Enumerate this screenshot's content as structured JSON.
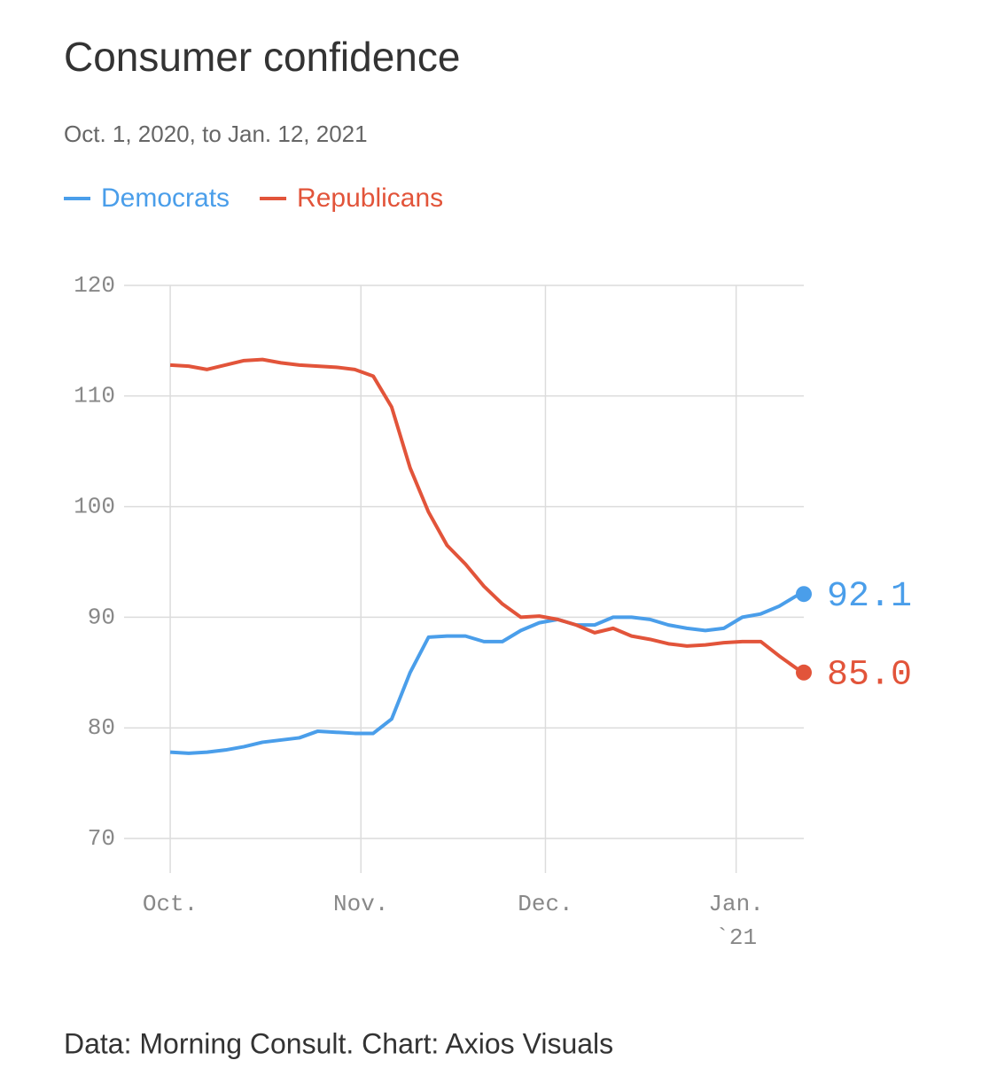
{
  "chart_data": {
    "type": "line",
    "title": "Consumer confidence",
    "subtitle": "Oct. 1, 2020, to Jan. 12, 2021",
    "source": "Data: Morning Consult. Chart: Axios Visuals",
    "x": [
      0,
      3,
      6,
      9,
      12,
      15,
      18,
      21,
      24,
      27,
      30,
      33,
      36,
      39,
      42,
      45,
      48,
      51,
      54,
      57,
      60,
      63,
      66,
      69,
      72,
      75,
      78,
      81,
      84,
      87,
      90,
      93,
      96,
      99,
      102,
      103
    ],
    "xlim": [
      -7.5,
      103
    ],
    "xticks": [
      {
        "value": 0,
        "label": "Oct."
      },
      {
        "value": 31,
        "label": "Nov."
      },
      {
        "value": 61,
        "label": "Dec."
      },
      {
        "value": 92,
        "label": "Jan."
      }
    ],
    "year_label": "`21",
    "ylim": [
      70,
      120
    ],
    "yticks": [
      70,
      80,
      90,
      100,
      110,
      120
    ],
    "grid": true,
    "series": [
      {
        "name": "Democrats",
        "color": "#4a9eea",
        "values": [
          77.8,
          77.7,
          77.8,
          78.0,
          78.3,
          78.7,
          78.9,
          79.1,
          79.7,
          79.6,
          79.5,
          79.5,
          80.8,
          85.0,
          88.2,
          88.3,
          88.3,
          87.8,
          87.8,
          88.8,
          89.5,
          89.8,
          89.3,
          89.3,
          90.0,
          90.0,
          89.8,
          89.3,
          89.0,
          88.8,
          89.0,
          90.0,
          90.3,
          91.0,
          92.0,
          92.1
        ],
        "last_value_label": "92.1"
      },
      {
        "name": "Republicans",
        "color": "#e2543a",
        "values": [
          112.8,
          112.7,
          112.4,
          112.8,
          113.2,
          113.3,
          113.0,
          112.8,
          112.7,
          112.6,
          112.4,
          111.8,
          109.0,
          103.5,
          99.5,
          96.5,
          94.8,
          92.8,
          91.2,
          90.0,
          90.1,
          89.8,
          89.3,
          88.6,
          89.0,
          88.3,
          88.0,
          87.6,
          87.4,
          87.5,
          87.7,
          87.8,
          87.8,
          86.5,
          85.3,
          85.0
        ],
        "last_value_label": "85.0"
      }
    ]
  }
}
